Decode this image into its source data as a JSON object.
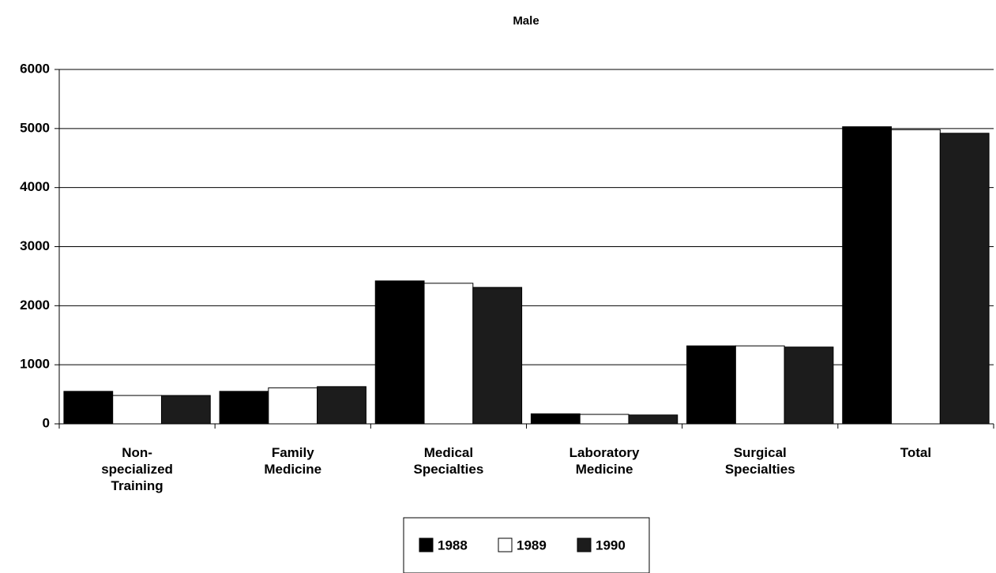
{
  "chart_data": {
    "type": "bar",
    "title": "Male",
    "categories": [
      "Non-specialized Training",
      "Family Medicine",
      "Medical Specialties",
      "Laboratory Medicine",
      "Surgical Specialties",
      "Total"
    ],
    "series": [
      {
        "name": "1988",
        "color": "#000000",
        "values": [
          550,
          550,
          2420,
          170,
          1320,
          5030
        ]
      },
      {
        "name": "1989",
        "color": "#ffffff",
        "values": [
          480,
          610,
          2380,
          160,
          1320,
          4980
        ]
      },
      {
        "name": "1990",
        "color": "#1c1c1c",
        "values": [
          480,
          630,
          2310,
          150,
          1300,
          4920
        ]
      }
    ],
    "ylim": [
      0,
      6000
    ],
    "yticks": [
      0,
      1000,
      2000,
      3000,
      4000,
      5000,
      6000
    ],
    "grid": true,
    "legend": "bottom"
  }
}
